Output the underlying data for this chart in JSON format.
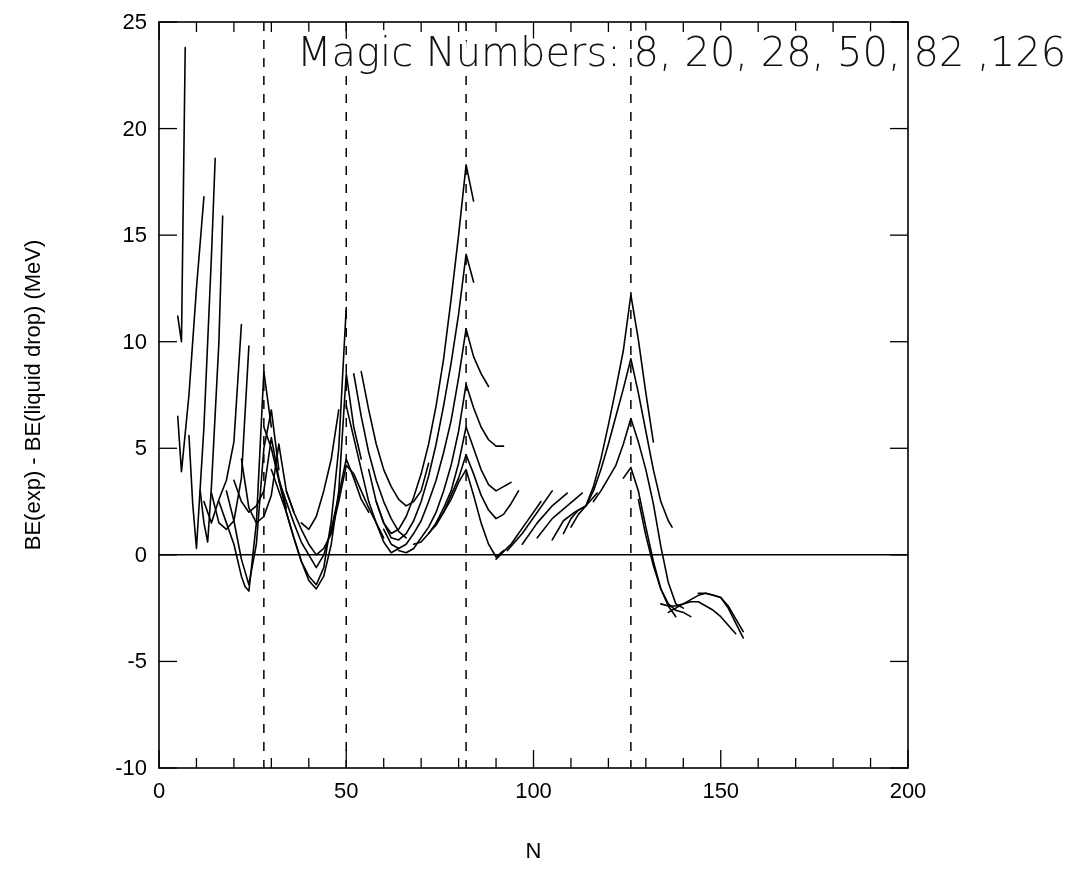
{
  "chart_data": {
    "type": "line",
    "xlabel": "N",
    "ylabel": "BE(exp) - BE(liquid drop) (MeV)",
    "annotations": [
      "Magic Numbers: 8, 20, 28, 50, 82 ,126"
    ],
    "xlim": [
      0,
      200
    ],
    "ylim": [
      -10,
      25
    ],
    "xticks": [
      0,
      {
        "value": 10,
        "label": null
      },
      {
        "value": 20,
        "label": null
      },
      {
        "value": 30,
        "label": null
      },
      {
        "value": 40,
        "label": null
      },
      50,
      {
        "value": 60,
        "label": null
      },
      {
        "value": 70,
        "label": null
      },
      {
        "value": 80,
        "label": null
      },
      {
        "value": 90,
        "label": null
      },
      100,
      {
        "value": 110,
        "label": null
      },
      {
        "value": 120,
        "label": null
      },
      {
        "value": 130,
        "label": null
      },
      {
        "value": 140,
        "label": null
      },
      150,
      {
        "value": 160,
        "label": null
      },
      {
        "value": 170,
        "label": null
      },
      {
        "value": 180,
        "label": null
      },
      {
        "value": 190,
        "label": null
      },
      200
    ],
    "yticks": [
      -10,
      -5,
      0,
      5,
      10,
      15,
      20,
      25
    ],
    "ref_lines": [
      {
        "axis": "x",
        "value": 28,
        "line_style": "dashed",
        "color": "#000000"
      },
      {
        "axis": "x",
        "value": 50,
        "line_style": "dashed",
        "color": "#000000"
      },
      {
        "axis": "x",
        "value": 82,
        "line_style": "dashed",
        "color": "#000000"
      },
      {
        "axis": "x",
        "value": 126,
        "line_style": "dashed",
        "color": "#000000"
      },
      {
        "axis": "y",
        "value": 0,
        "line_style": "solid",
        "color": "#000000"
      }
    ],
    "series": [
      {
        "color": "#000000",
        "x": [
          5,
          6,
          7
        ],
        "values": [
          11.2,
          10,
          23.8
        ]
      },
      {
        "color": "#000000",
        "x": [
          5,
          6,
          8,
          10,
          12
        ],
        "values": [
          6.5,
          3.9,
          7.5,
          12.5,
          16.8
        ]
      },
      {
        "color": "#000000",
        "x": [
          8,
          9,
          10,
          12,
          14,
          15
        ],
        "values": [
          5.6,
          2.4,
          0.3,
          6,
          14,
          18.6
        ]
      },
      {
        "color": "#000000",
        "x": [
          11,
          12,
          13,
          14,
          16,
          17
        ],
        "values": [
          3,
          1.5,
          0.6,
          3.2,
          10,
          15.9
        ]
      },
      {
        "color": "#000000",
        "x": [
          12,
          14,
          16,
          18,
          20,
          22
        ],
        "values": [
          2.5,
          1.5,
          2.6,
          3.5,
          5.3,
          10.8
        ]
      },
      {
        "color": "#000000",
        "x": [
          14,
          16,
          18,
          20,
          22,
          24
        ],
        "values": [
          2.9,
          1.5,
          1.2,
          1.6,
          3.6,
          9.8
        ]
      },
      {
        "color": "#000000",
        "x": [
          16,
          18,
          20,
          22,
          23,
          24,
          26,
          28,
          30
        ],
        "values": [
          2.5,
          1.5,
          0.5,
          -1,
          -1.5,
          -1.7,
          1.5,
          8.6,
          6
        ]
      },
      {
        "color": "#000000",
        "x": [
          18,
          20,
          22,
          24,
          26,
          28,
          30,
          32
        ],
        "values": [
          3,
          1.6,
          -0.2,
          -1.4,
          0.5,
          5,
          6.8,
          4
        ]
      },
      {
        "color": "#000000",
        "x": [
          20,
          22,
          24,
          26,
          28,
          30,
          32,
          34
        ],
        "values": [
          3.5,
          2.5,
          2,
          2.3,
          3,
          5.5,
          3.6,
          2.2
        ]
      },
      {
        "color": "#000000",
        "x": [
          22,
          24,
          26,
          28,
          30,
          32,
          34,
          36
        ],
        "values": [
          4.5,
          2.2,
          1.5,
          1.8,
          2.8,
          5.2,
          3,
          2
        ]
      },
      {
        "color": "#000000",
        "x": [
          28,
          30,
          32,
          34,
          36,
          38,
          40,
          42,
          44,
          46,
          48,
          50,
          52,
          54
        ],
        "values": [
          6,
          5,
          3.5,
          2,
          0.8,
          -0.3,
          -1.2,
          -1.6,
          -1,
          0.5,
          3,
          8.5,
          6,
          4.5
        ]
      },
      {
        "color": "#000000",
        "x": [
          30,
          32,
          34,
          36,
          38,
          40,
          42,
          44,
          46,
          48,
          50
        ],
        "values": [
          4,
          3,
          2,
          0.8,
          -0.3,
          -1,
          -1.4,
          -0.6,
          1.6,
          5,
          11.6
        ]
      },
      {
        "color": "#000000",
        "x": [
          32,
          34,
          36,
          38,
          40,
          42,
          44,
          46,
          48,
          50,
          52,
          54,
          56
        ],
        "values": [
          3.5,
          2.5,
          1.5,
          0.6,
          0,
          -0.6,
          0,
          1.2,
          2.8,
          4.5,
          3.6,
          2.6,
          2
        ]
      },
      {
        "color": "#000000",
        "x": [
          34,
          36,
          38,
          40,
          42,
          44,
          46,
          48,
          50,
          52,
          54,
          56,
          58,
          60
        ],
        "values": [
          3,
          2,
          1.2,
          0.5,
          0,
          0.3,
          1,
          2.5,
          4.2,
          3.8,
          3,
          2.2,
          1.5,
          0.8
        ]
      },
      {
        "color": "#000000",
        "x": [
          38,
          40,
          42,
          44,
          46,
          48
        ],
        "values": [
          1.5,
          1.2,
          1.8,
          3,
          4.5,
          6.8
        ]
      },
      {
        "color": "#000000",
        "x": [
          52,
          54,
          56,
          58,
          60,
          62,
          64,
          66
        ],
        "values": [
          8.5,
          6.5,
          4.8,
          3.5,
          2.5,
          1.7,
          1.1,
          0.8
        ]
      },
      {
        "color": "#000000",
        "x": [
          54,
          56,
          58,
          60,
          62,
          64,
          66,
          68,
          70,
          72
        ],
        "values": [
          8.6,
          6.8,
          5.2,
          4,
          3.2,
          2.6,
          2.3,
          2.5,
          3,
          4.3
        ]
      },
      {
        "color": "#000000",
        "x": [
          50,
          52,
          54,
          56,
          58,
          60,
          62,
          64
        ],
        "values": [
          7,
          5.5,
          4,
          2.5,
          1.5,
          0.6,
          0.1,
          0.3
        ]
      },
      {
        "color": "#000000",
        "x": [
          56,
          58,
          60,
          62,
          64,
          66,
          68,
          70,
          72,
          74,
          76,
          78,
          80,
          82,
          84
        ],
        "values": [
          4,
          2.5,
          1.5,
          1,
          1.2,
          1.8,
          2.7,
          3.8,
          5.2,
          7,
          9.2,
          12,
          15,
          18.3,
          16.6
        ]
      },
      {
        "color": "#000000",
        "x": [
          58,
          60,
          62,
          64,
          66,
          68,
          70,
          72,
          74,
          76,
          78,
          80,
          82,
          84
        ],
        "values": [
          2.5,
          1.5,
          0.8,
          0.7,
          1,
          1.6,
          2.5,
          3.7,
          5.2,
          7,
          9,
          11.3,
          14.1,
          12.8
        ]
      },
      {
        "color": "#000000",
        "x": [
          60,
          62,
          64,
          66,
          68,
          70,
          72,
          74,
          76,
          78,
          80,
          82,
          84,
          86,
          88
        ],
        "values": [
          1.2,
          0.5,
          0.3,
          0.5,
          1,
          1.6,
          2.5,
          3.5,
          4.8,
          6.3,
          8.3,
          10.6,
          9.3,
          8.5,
          7.9
        ]
      },
      {
        "color": "#000000",
        "x": [
          64,
          66,
          68,
          70,
          72,
          74,
          76,
          78,
          80,
          82,
          84,
          86,
          88,
          90,
          92
        ],
        "values": [
          0.2,
          0.1,
          0.3,
          0.8,
          1.3,
          2,
          3,
          4.2,
          5.8,
          8,
          6.9,
          6,
          5.4,
          5.1,
          5.1
        ]
      },
      {
        "color": "#000000",
        "x": [
          68,
          70,
          72,
          74,
          76,
          78,
          80,
          82,
          84,
          86,
          88,
          90,
          92,
          94
        ],
        "values": [
          0.5,
          0.6,
          1,
          1.5,
          2.2,
          3,
          4.3,
          6,
          5,
          4,
          3.3,
          3,
          3.2,
          3.4
        ]
      },
      {
        "color": "#000000",
        "x": [
          72,
          74,
          76,
          78,
          80,
          82,
          84,
          86,
          88,
          90,
          92,
          94,
          96
        ],
        "values": [
          1,
          1.4,
          2,
          2.8,
          3.6,
          4.7,
          3.8,
          2.8,
          2.1,
          1.7,
          1.9,
          2.4,
          3
        ]
      },
      {
        "color": "#000000",
        "x": [
          74,
          76,
          78,
          80,
          82,
          84,
          86,
          88,
          90,
          92
        ],
        "values": [
          1.5,
          2,
          2.6,
          3.4,
          4,
          2.8,
          1.5,
          0.5,
          -0.1,
          0.2
        ]
      },
      {
        "color": "#000000",
        "x": [
          90,
          94,
          98,
          102
        ],
        "values": [
          -0.2,
          0.5,
          1.5,
          2.5
        ]
      },
      {
        "color": "#000000",
        "x": [
          93,
          97,
          101,
          105
        ],
        "values": [
          0.2,
          1,
          2,
          3
        ]
      },
      {
        "color": "#000000",
        "x": [
          97,
          101,
          105,
          109
        ],
        "values": [
          0.5,
          1.5,
          2.3,
          2.9
        ]
      },
      {
        "color": "#000000",
        "x": [
          101,
          105,
          109,
          113
        ],
        "values": [
          0.8,
          1.7,
          2.3,
          2.9
        ]
      },
      {
        "color": "#000000",
        "x": [
          105,
          108,
          111,
          114,
          117
        ],
        "values": [
          0.7,
          1.6,
          2,
          2.3,
          2.9
        ]
      },
      {
        "color": "#000000",
        "x": [
          108,
          110,
          112,
          114,
          116,
          118,
          120,
          122,
          124,
          126,
          128,
          130,
          132
        ],
        "values": [
          1,
          1.7,
          2.1,
          2.3,
          3.2,
          4.5,
          6.1,
          7.8,
          9.6,
          12.2,
          10.1,
          7.6,
          5.3
        ]
      },
      {
        "color": "#000000",
        "x": [
          110,
          112,
          114,
          116,
          118,
          120,
          122,
          124,
          126,
          128,
          130,
          132,
          134,
          136,
          137
        ],
        "values": [
          1.3,
          1.9,
          2.3,
          3,
          4,
          5.2,
          6.5,
          7.8,
          9.2,
          7.6,
          5.8,
          4,
          2.5,
          1.6,
          1.3
        ]
      },
      {
        "color": "#000000",
        "x": [
          116,
          118,
          120,
          122,
          124,
          126,
          128,
          130,
          132,
          134,
          136,
          138,
          140
        ],
        "values": [
          2.5,
          3,
          3.6,
          4.2,
          5.2,
          6.4,
          5.3,
          4,
          2.4,
          0.4,
          -1.3,
          -2.3,
          -2.5
        ]
      },
      {
        "color": "#000000",
        "x": [
          124,
          126,
          128,
          130,
          132,
          134,
          136,
          138,
          140,
          142
        ],
        "values": [
          3.6,
          4.1,
          3,
          1.3,
          -0.3,
          -1.6,
          -2.3,
          -2.6,
          -2.7,
          -2.9
        ]
      },
      {
        "color": "#000000",
        "x": [
          128,
          130,
          132,
          134,
          136,
          138
        ],
        "values": [
          2.6,
          0.9,
          -0.5,
          -1.6,
          -2.4,
          -2.9
        ]
      },
      {
        "color": "#000000",
        "x": [
          134,
          136,
          138,
          140,
          142,
          144,
          146,
          148,
          150,
          152,
          154,
          156
        ],
        "values": [
          -2.3,
          -2.4,
          -2.4,
          -2.3,
          -2.1,
          -1.9,
          -1.8,
          -1.9,
          -2,
          -2.5,
          -3.2,
          -3.9
        ]
      },
      {
        "color": "#000000",
        "x": [
          136,
          138,
          140,
          142,
          144,
          146,
          148,
          150,
          152,
          154
        ],
        "values": [
          -2.7,
          -2.5,
          -2.3,
          -2.2,
          -2.2,
          -2.4,
          -2.6,
          -2.9,
          -3.3,
          -3.7
        ]
      },
      {
        "color": "#000000",
        "x": [
          144,
          146,
          148,
          150,
          152,
          154,
          156
        ],
        "values": [
          -1.8,
          -1.8,
          -1.9,
          -2,
          -2.4,
          -3,
          -3.6
        ]
      }
    ]
  }
}
